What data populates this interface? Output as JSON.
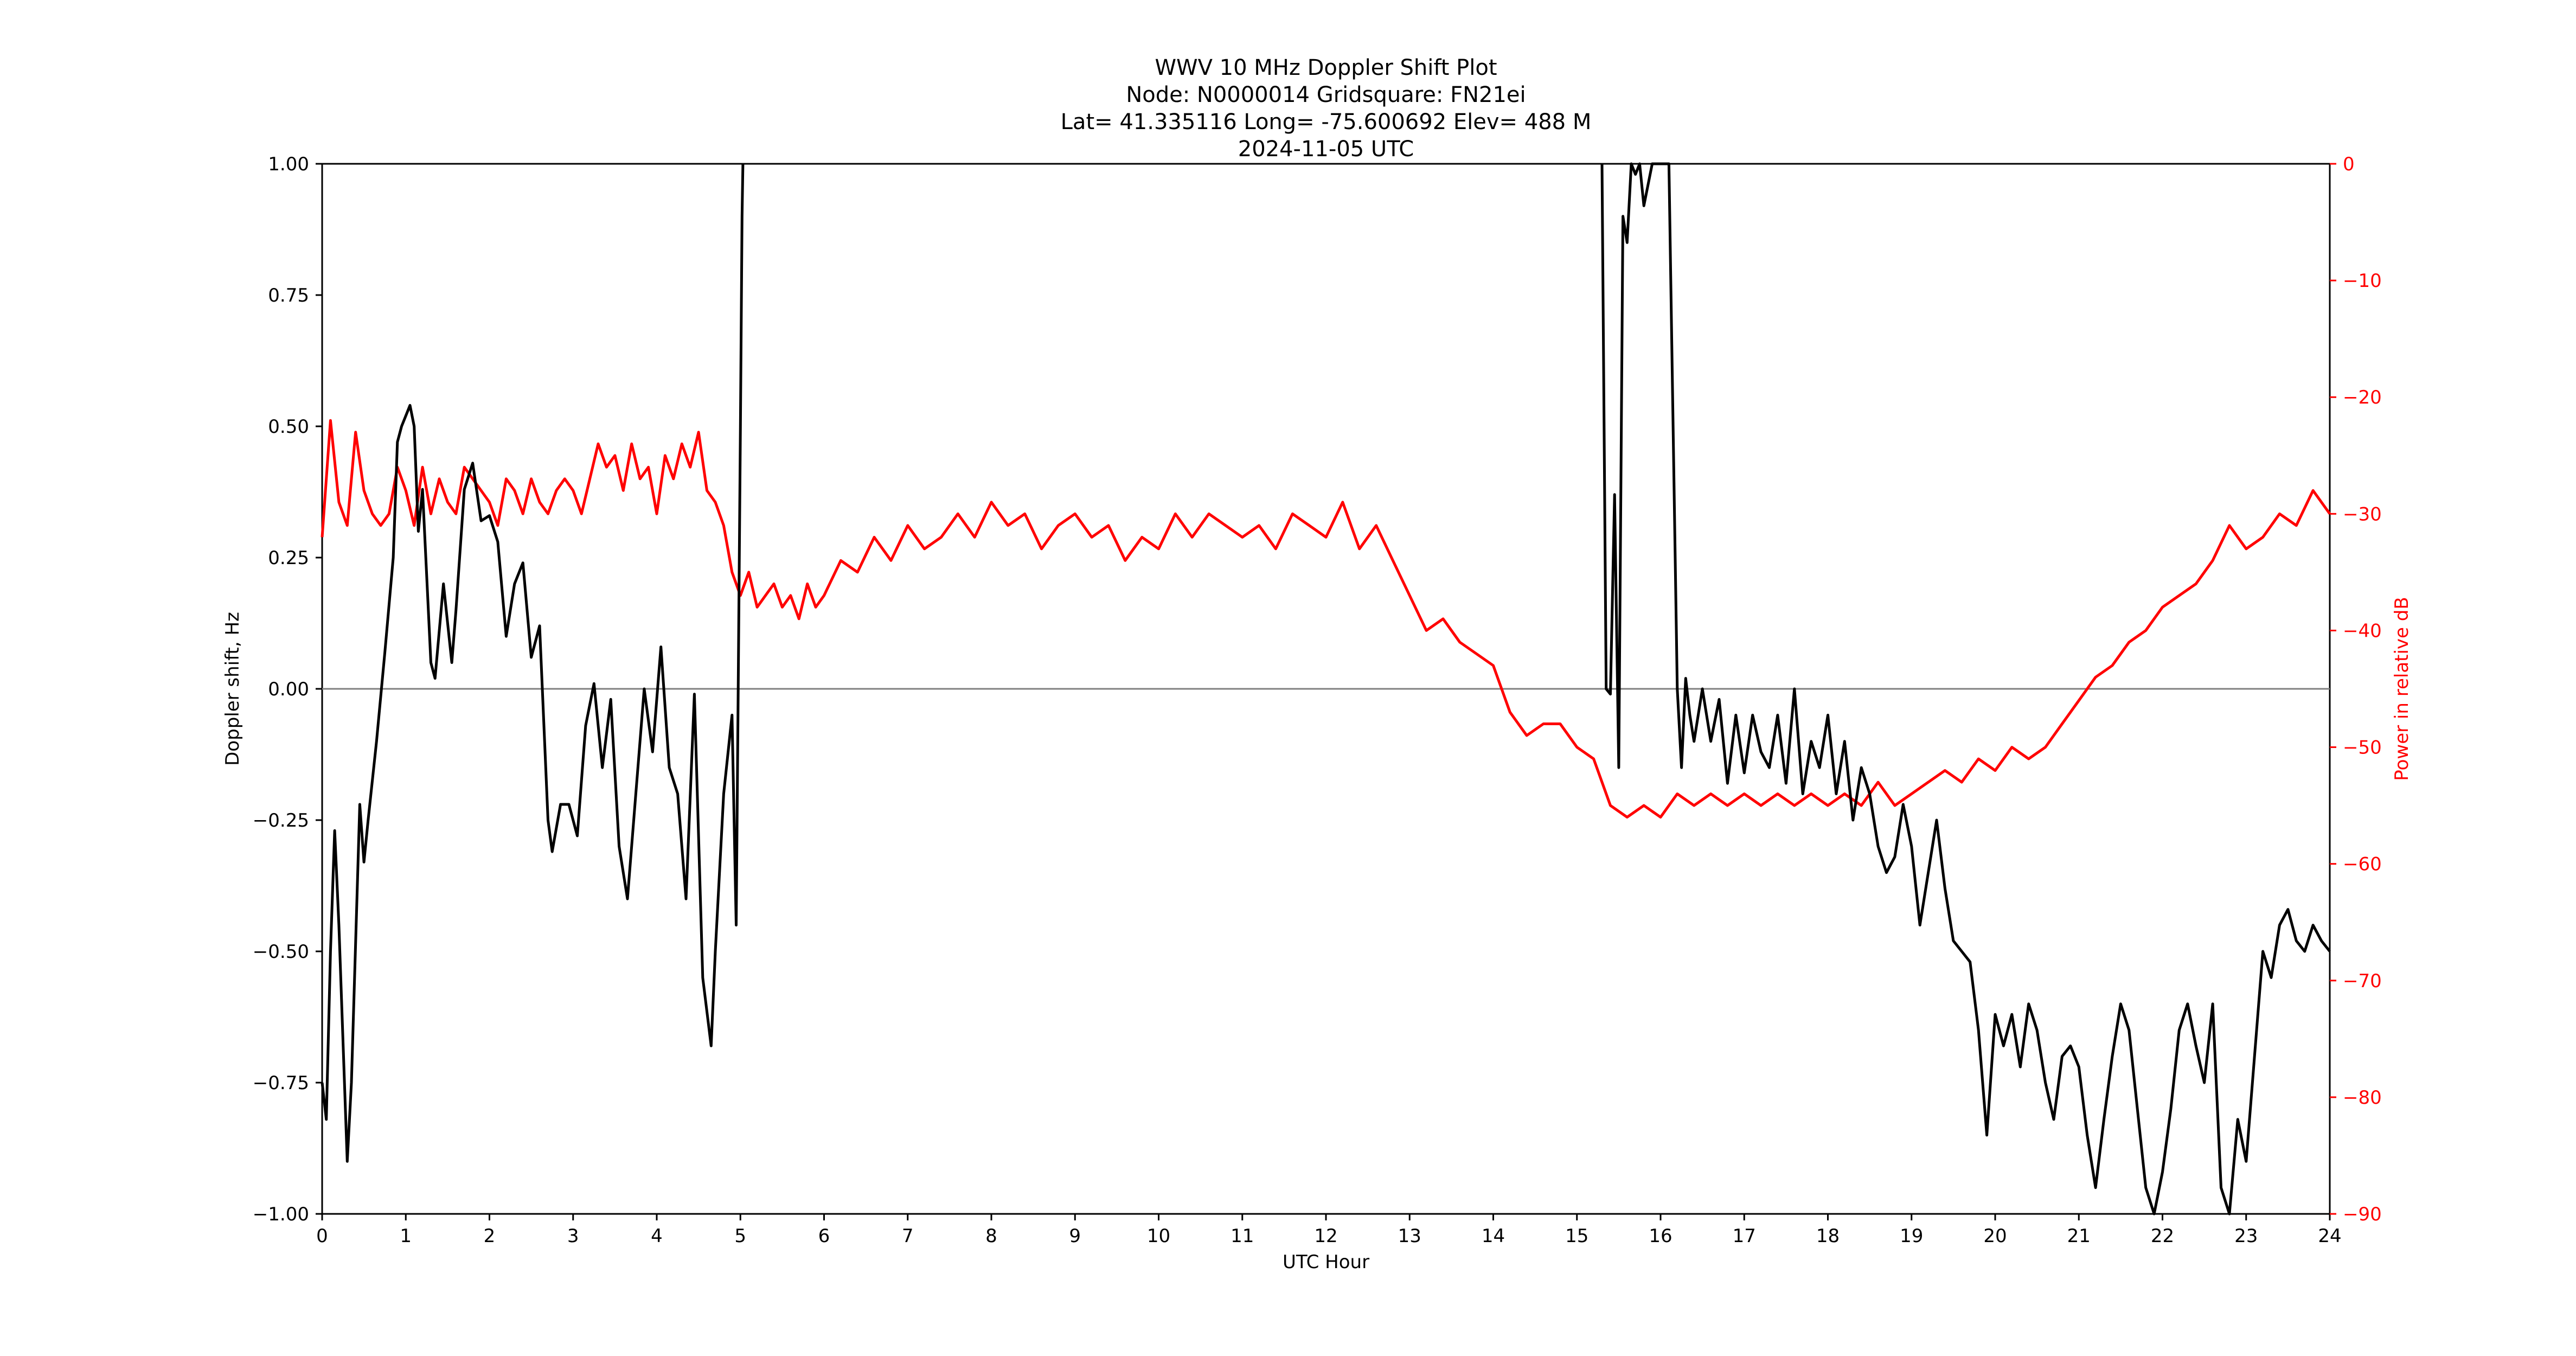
{
  "chart_data": {
    "type": "line",
    "title_lines": [
      "WWV 10 MHz Doppler Shift Plot",
      "Node:  N0000014     Gridsquare:  FN21ei",
      "Lat= 41.335116    Long= -75.600692    Elev= 488 M",
      "2024-11-05  UTC"
    ],
    "xlabel": "UTC Hour",
    "ylabel_left": "Doppler shift, Hz",
    "ylabel_right": "Power in relative dB",
    "xlim": [
      0,
      24
    ],
    "ylim_left": [
      -1.0,
      1.0
    ],
    "ylim_right": [
      -90,
      0
    ],
    "x_ticks": [
      "0",
      "1",
      "2",
      "3",
      "4",
      "5",
      "6",
      "7",
      "8",
      "9",
      "10",
      "11",
      "12",
      "13",
      "14",
      "15",
      "16",
      "17",
      "18",
      "19",
      "20",
      "21",
      "22",
      "23",
      "24"
    ],
    "y_ticks_left": [
      "1.00",
      "0.75",
      "0.50",
      "0.25",
      "0.00",
      "−0.25",
      "−0.50",
      "−0.75",
      "−1.00"
    ],
    "y_ticks_right": [
      "0",
      "−10",
      "−20",
      "−30",
      "−40",
      "−50",
      "−60",
      "−70",
      "−80",
      "−90"
    ],
    "zero_line": 0,
    "grid": false,
    "colors": {
      "doppler": "#000000",
      "power": "#ff0000",
      "zero_line": "#808080"
    },
    "series": [
      {
        "axis": "left",
        "x": [
          0,
          0.05,
          0.1,
          0.15,
          0.2,
          0.3,
          0.35,
          0.45,
          0.5,
          0.55,
          0.65,
          0.75,
          0.85,
          0.9,
          0.95,
          1.0,
          1.05,
          1.1,
          1.15,
          1.2,
          1.3,
          1.35,
          1.45,
          1.55,
          1.6,
          1.7,
          1.8,
          1.9,
          2.0,
          2.1,
          2.2,
          2.3,
          2.35,
          2.4,
          2.5,
          2.6,
          2.7,
          2.75,
          2.85,
          2.95,
          3.05,
          3.15,
          3.25,
          3.35,
          3.45,
          3.55,
          3.65,
          3.75,
          3.85,
          3.95,
          4.05,
          4.15,
          4.25,
          4.35,
          4.45,
          4.55,
          4.65,
          4.7,
          4.8,
          4.9,
          4.95,
          5.0,
          5.02,
          5.03
        ],
        "y": [
          -0.75,
          -0.82,
          -0.5,
          -0.27,
          -0.45,
          -0.9,
          -0.75,
          -0.22,
          -0.33,
          -0.25,
          -0.1,
          0.07,
          0.25,
          0.47,
          0.5,
          0.52,
          0.54,
          0.5,
          0.3,
          0.38,
          0.05,
          0.02,
          0.2,
          0.05,
          0.15,
          0.38,
          0.43,
          0.32,
          0.33,
          0.28,
          0.1,
          0.2,
          0.22,
          0.24,
          0.06,
          0.12,
          -0.25,
          -0.31,
          -0.22,
          -0.22,
          -0.28,
          -0.07,
          0.01,
          -0.15,
          -0.02,
          -0.3,
          -0.4,
          -0.2,
          0.0,
          -0.12,
          0.08,
          -0.15,
          -0.2,
          -0.4,
          -0.01,
          -0.55,
          -0.68,
          -0.5,
          -0.2,
          -0.05,
          -0.45,
          0.5,
          0.9,
          1.0
        ]
      },
      {
        "axis": "left",
        "x": [
          15.3,
          15.35,
          15.4,
          15.45,
          15.5,
          15.55,
          15.6,
          15.65,
          15.7,
          15.75,
          15.8,
          15.9,
          16.0,
          16.1,
          16.2,
          16.25,
          16.3,
          16.35,
          16.4,
          16.5,
          16.6,
          16.7,
          16.8,
          16.9,
          17.0,
          17.1,
          17.2,
          17.3,
          17.4,
          17.5,
          17.6,
          17.7,
          17.8,
          17.9,
          18.0,
          18.1,
          18.2,
          18.3,
          18.4,
          18.5,
          18.6,
          18.7,
          18.8,
          18.9,
          19.0,
          19.1,
          19.2,
          19.3,
          19.4,
          19.5,
          19.6,
          19.7,
          19.8,
          19.9,
          20.0,
          20.1,
          20.2,
          20.3,
          20.4,
          20.5,
          20.6,
          20.7,
          20.8,
          20.9,
          21.0,
          21.1,
          21.2,
          21.3,
          21.4,
          21.5,
          21.6,
          21.7,
          21.8,
          21.9,
          22.0,
          22.1,
          22.2,
          22.3,
          22.4,
          22.5,
          22.6,
          22.7,
          22.8,
          22.9,
          23.0,
          23.1,
          23.2,
          23.3,
          23.4,
          23.5,
          23.6,
          23.7,
          23.8,
          23.9,
          24.0
        ],
        "y": [
          1.0,
          0.0,
          -0.01,
          0.37,
          -0.15,
          0.9,
          0.85,
          1.0,
          0.98,
          1.0,
          0.92,
          1.0,
          1.0,
          1.0,
          0.0,
          -0.15,
          0.02,
          -0.05,
          -0.1,
          0.0,
          -0.1,
          -0.02,
          -0.18,
          -0.05,
          -0.16,
          -0.05,
          -0.12,
          -0.15,
          -0.05,
          -0.18,
          0.0,
          -0.2,
          -0.1,
          -0.15,
          -0.05,
          -0.2,
          -0.1,
          -0.25,
          -0.15,
          -0.2,
          -0.3,
          -0.35,
          -0.32,
          -0.22,
          -0.3,
          -0.45,
          -0.35,
          -0.25,
          -0.38,
          -0.48,
          -0.5,
          -0.52,
          -0.65,
          -0.85,
          -0.62,
          -0.68,
          -0.62,
          -0.72,
          -0.6,
          -0.65,
          -0.75,
          -0.82,
          -0.7,
          -0.68,
          -0.72,
          -0.85,
          -0.95,
          -0.82,
          -0.7,
          -0.6,
          -0.65,
          -0.8,
          -0.95,
          -1.0,
          -0.92,
          -0.8,
          -0.65,
          -0.6,
          -0.68,
          -0.75,
          -0.6,
          -0.95,
          -1.0,
          -0.82,
          -0.9,
          -0.7,
          -0.5,
          -0.55,
          -0.45,
          -0.42,
          -0.48,
          -0.5,
          -0.45,
          -0.48,
          -0.5
        ]
      },
      {
        "axis": "right",
        "x": [
          0,
          0.1,
          0.2,
          0.3,
          0.4,
          0.5,
          0.6,
          0.7,
          0.8,
          0.9,
          1.0,
          1.1,
          1.2,
          1.3,
          1.4,
          1.5,
          1.6,
          1.7,
          1.8,
          1.9,
          2.0,
          2.1,
          2.2,
          2.3,
          2.4,
          2.5,
          2.6,
          2.7,
          2.8,
          2.9,
          3.0,
          3.1,
          3.2,
          3.3,
          3.4,
          3.5,
          3.6,
          3.7,
          3.8,
          3.9,
          4.0,
          4.1,
          4.2,
          4.3,
          4.4,
          4.5,
          4.6,
          4.7,
          4.8,
          4.9,
          5.0,
          5.1,
          5.2,
          5.3,
          5.4,
          5.5,
          5.6,
          5.7,
          5.8,
          5.9,
          6.0,
          6.2,
          6.4,
          6.6,
          6.8,
          7.0,
          7.2,
          7.4,
          7.6,
          7.8,
          8.0,
          8.2,
          8.4,
          8.6,
          8.8,
          9.0,
          9.2,
          9.4,
          9.6,
          9.8,
          10.0,
          10.2,
          10.4,
          10.6,
          10.8,
          11.0,
          11.2,
          11.4,
          11.6,
          11.8,
          12.0,
          12.2,
          12.4,
          12.6,
          12.8,
          13.0,
          13.2,
          13.4,
          13.6,
          13.8,
          14.0,
          14.2,
          14.4,
          14.6,
          14.8,
          15.0,
          15.2,
          15.4,
          15.6,
          15.8,
          16.0,
          16.2,
          16.4,
          16.6,
          16.8,
          17.0,
          17.2,
          17.4,
          17.6,
          17.8,
          18.0,
          18.2,
          18.4,
          18.6,
          18.8,
          19.0,
          19.2,
          19.4,
          19.6,
          19.8,
          20.0,
          20.2,
          20.4,
          20.6,
          20.8,
          21.0,
          21.2,
          21.4,
          21.6,
          21.8,
          22.0,
          22.2,
          22.4,
          22.6,
          22.8,
          23.0,
          23.2,
          23.4,
          23.6,
          23.8,
          24.0
        ],
        "y": [
          -32,
          -22,
          -29,
          -31,
          -23,
          -28,
          -30,
          -31,
          -30,
          -26,
          -28,
          -31,
          -26,
          -30,
          -27,
          -29,
          -30,
          -26,
          -27,
          -28,
          -29,
          -31,
          -27,
          -28,
          -30,
          -27,
          -29,
          -30,
          -28,
          -27,
          -28,
          -30,
          -27,
          -24,
          -26,
          -25,
          -28,
          -24,
          -27,
          -26,
          -30,
          -25,
          -27,
          -24,
          -26,
          -23,
          -28,
          -29,
          -31,
          -35,
          -37,
          -35,
          -38,
          -37,
          -36,
          -38,
          -37,
          -39,
          -36,
          -38,
          -37,
          -34,
          -35,
          -32,
          -34,
          -31,
          -33,
          -32,
          -30,
          -32,
          -29,
          -31,
          -30,
          -33,
          -31,
          -30,
          -32,
          -31,
          -34,
          -32,
          -33,
          -30,
          -32,
          -30,
          -31,
          -32,
          -31,
          -33,
          -30,
          -31,
          -32,
          -29,
          -33,
          -31,
          -34,
          -37,
          -40,
          -39,
          -41,
          -42,
          -43,
          -47,
          -49,
          -48,
          -48,
          -50,
          -51,
          -55,
          -56,
          -55,
          -56,
          -54,
          -55,
          -54,
          -55,
          -54,
          -55,
          -54,
          -55,
          -54,
          -55,
          -54,
          -55,
          -53,
          -55,
          -54,
          -53,
          -52,
          -53,
          -51,
          -52,
          -50,
          -51,
          -50,
          -48,
          -46,
          -44,
          -43,
          -41,
          -40,
          -38,
          -37,
          -36,
          -34,
          -31,
          -33,
          -32,
          -30,
          -31,
          -28,
          -30
        ]
      }
    ]
  }
}
